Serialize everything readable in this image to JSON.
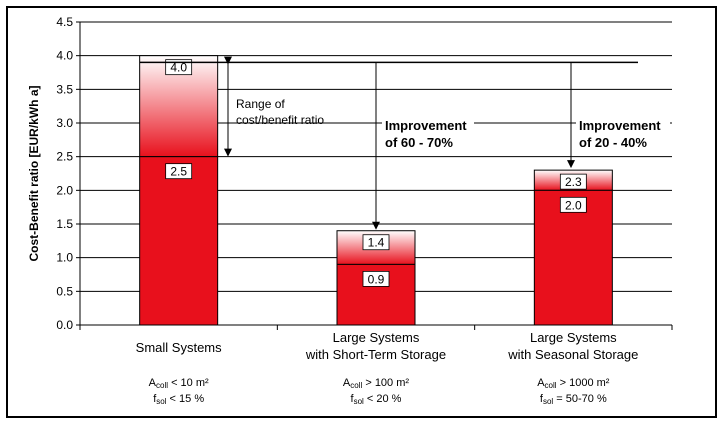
{
  "chart_data": {
    "type": "bar",
    "ylabel": "Cost-Benefit ratio [EUR/kWh a]",
    "ylim": [
      0,
      4.5
    ],
    "ytick_step": 0.5,
    "grid": true,
    "categories": [
      {
        "lines": [
          "Small Systems"
        ],
        "area_prefix": "A",
        "area_sub": "coll",
        "area_rest": " < 10 m²",
        "frac_prefix": "f",
        "frac_sub": "sol",
        "frac_rest": " < 15 %"
      },
      {
        "lines": [
          "Large Systems",
          "with Short-Term Storage"
        ],
        "area_prefix": "A",
        "area_sub": "coll",
        "area_rest": " > 100 m²",
        "frac_prefix": "f",
        "frac_sub": "sol",
        "frac_rest": " < 20 %"
      },
      {
        "lines": [
          "Large Systems",
          "with Seasonal Storage"
        ],
        "area_prefix": "A",
        "area_sub": "coll",
        "area_rest": " > 1000 m²",
        "frac_prefix": "f",
        "frac_sub": "sol",
        "frac_rest": " = 50-70 %"
      }
    ],
    "series": [
      {
        "values": [
          2.5,
          0.9,
          2.0
        ],
        "color": "#e8101c"
      },
      {
        "values": [
          4.0,
          1.4,
          2.3
        ],
        "color": "#e8101c"
      }
    ],
    "low_labels": [
      "2.5",
      "0.9",
      "2.0"
    ],
    "high_labels": [
      "4.0",
      "1.4",
      "2.3"
    ],
    "reference_line": 3.9,
    "annotations": {
      "range_lines": [
        "Range of",
        "cost/benefit ratio"
      ],
      "improvement_1": [
        "Improvement",
        "of 60 - 70%"
      ],
      "improvement_2": [
        "Improvement",
        "of 20 - 40%"
      ]
    }
  }
}
